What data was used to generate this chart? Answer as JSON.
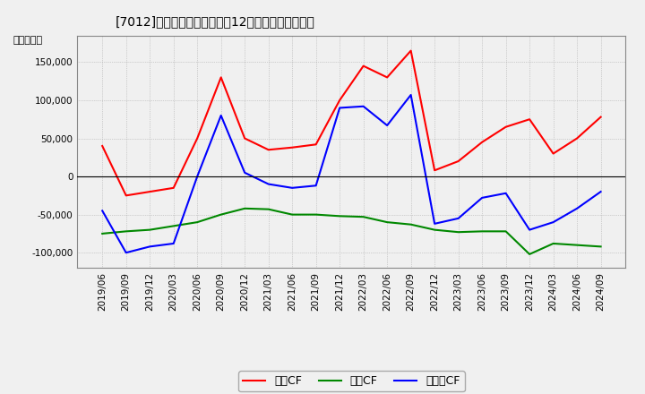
{
  "title": "[7012]　キャッシュフローの12か月移動合計の推移",
  "ylabel": "（百万円）",
  "dates": [
    "2019/06",
    "2019/09",
    "2019/12",
    "2020/03",
    "2020/06",
    "2020/09",
    "2020/12",
    "2021/03",
    "2021/06",
    "2021/09",
    "2021/12",
    "2022/03",
    "2022/06",
    "2022/09",
    "2022/12",
    "2023/03",
    "2023/06",
    "2023/09",
    "2023/12",
    "2024/03",
    "2024/06",
    "2024/09"
  ],
  "operating_cf": [
    40000,
    -25000,
    -20000,
    -15000,
    50000,
    130000,
    50000,
    35000,
    38000,
    42000,
    100000,
    145000,
    130000,
    165000,
    8000,
    20000,
    45000,
    65000,
    75000,
    30000,
    50000,
    78000
  ],
  "investing_cf": [
    -75000,
    -72000,
    -70000,
    -65000,
    -60000,
    -50000,
    -42000,
    -43000,
    -50000,
    -50000,
    -52000,
    -53000,
    -60000,
    -63000,
    -70000,
    -73000,
    -72000,
    -72000,
    -102000,
    -88000,
    -90000,
    -92000
  ],
  "free_cf": [
    -45000,
    -100000,
    -92000,
    -88000,
    0,
    80000,
    5000,
    -10000,
    -15000,
    -12000,
    90000,
    92000,
    67000,
    107000,
    -62000,
    -55000,
    -28000,
    -22000,
    -70000,
    -60000,
    -42000,
    -20000
  ],
  "operating_color": "#ff0000",
  "investing_color": "#008800",
  "free_cf_color": "#0000ff",
  "ylim": [
    -120000,
    185000
  ],
  "yticks": [
    -100000,
    -50000,
    0,
    50000,
    100000,
    150000
  ],
  "background_color": "#f0f0f0",
  "plot_bg_color": "#f0f0f0",
  "grid_color": "#aaaaaa",
  "legend_labels": [
    "営業CF",
    "投資CF",
    "フリーCF"
  ]
}
